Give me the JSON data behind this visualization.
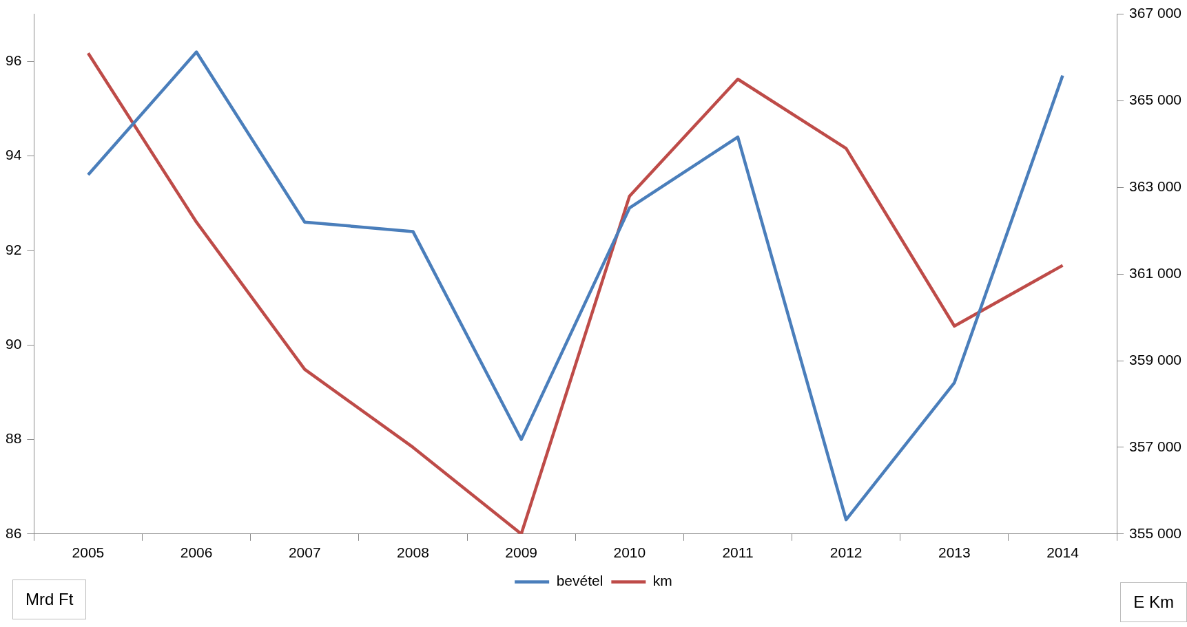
{
  "chart_data": {
    "type": "line",
    "categories": [
      "2005",
      "2006",
      "2007",
      "2008",
      "2009",
      "2010",
      "2011",
      "2012",
      "2013",
      "2014"
    ],
    "series": [
      {
        "name": "bevétel",
        "color": "#4a7ebb",
        "values": [
          93.6,
          96.2,
          92.6,
          92.4,
          88.0,
          92.9,
          94.4,
          86.3,
          89.2,
          95.7
        ]
      },
      {
        "name": "km",
        "color": "#be4b48",
        "axis": "y2",
        "values": [
          366100,
          362200,
          358800,
          357000,
          355000,
          362800,
          365500,
          363900,
          359800,
          361200
        ]
      }
    ],
    "annotations": [
      "Mrd Ft",
      "E Km"
    ],
    "ylim": [
      86,
      97
    ],
    "yticks": [
      86,
      88,
      90,
      92,
      94,
      96
    ],
    "y2lim": [
      355000,
      367000
    ],
    "y2ticks": [
      {
        "value": 355000,
        "label": "355 000"
      },
      {
        "value": 357000,
        "label": "357 000"
      },
      {
        "value": 359000,
        "label": "359 000"
      },
      {
        "value": 361000,
        "label": "361 000"
      },
      {
        "value": 363000,
        "label": "363 000"
      },
      {
        "value": 365000,
        "label": "365 000"
      },
      {
        "value": 367000,
        "label": "367 000"
      }
    ],
    "grid": false,
    "legend": "bottom",
    "marker": "none",
    "line_style": "solid"
  }
}
